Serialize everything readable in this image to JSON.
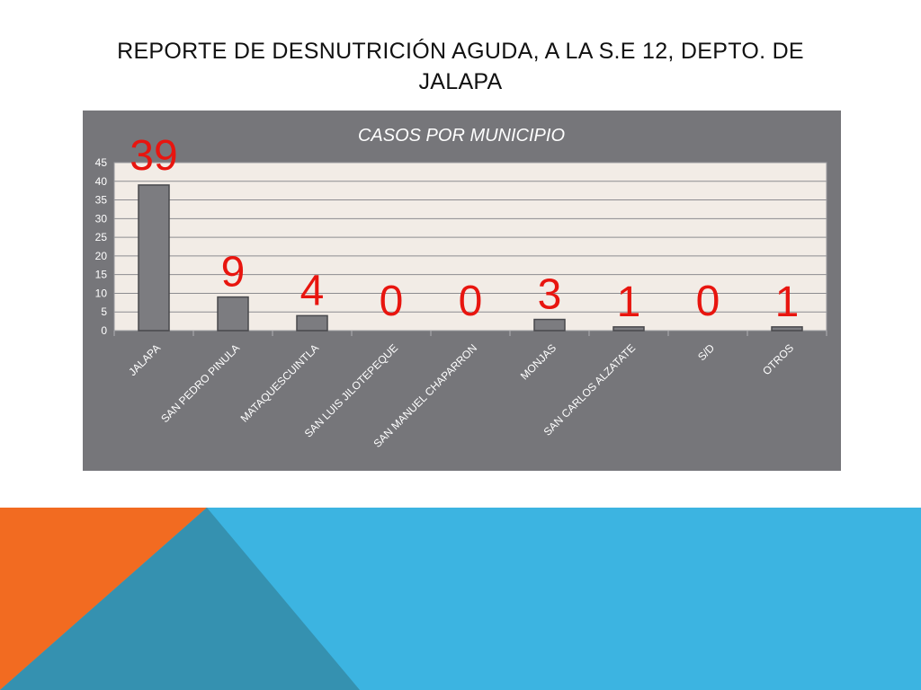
{
  "slide": {
    "title": "REPORTE DE DESNUTRICIÓN AGUDA, A LA S.E 12, DEPTO. DE JALAPA"
  },
  "colors": {
    "chart_background": "#76767a",
    "plot_background": "#f2ece6",
    "bar": "#7c7c80",
    "data_label": "#e8150f",
    "decor_orange": "#f26b21",
    "decor_blue": "#3cb4e1",
    "decor_darkblue": "#3591b0"
  },
  "chart_data": {
    "type": "bar",
    "title": "CASOS POR MUNICIPIO",
    "categories": [
      "JALAPA",
      "SAN PEDRO PINULA",
      "MATAQUESCUINTLA",
      "SAN LUIS JILOTEPEQUE",
      "SAN MANUEL CHAPARRON",
      "MONJAS",
      "SAN CARLOS ALZATATE",
      "S/D",
      "OTROS"
    ],
    "values": [
      39,
      9,
      4,
      0,
      0,
      3,
      1,
      0,
      1
    ],
    "data_labels": [
      "39",
      "9",
      "4",
      "0",
      "0",
      "3",
      "1",
      "0",
      "1"
    ],
    "ylim": [
      0,
      45
    ],
    "yticks": [
      0,
      5,
      10,
      15,
      20,
      25,
      30,
      35,
      40,
      45
    ],
    "grid": true,
    "legend": "none"
  }
}
